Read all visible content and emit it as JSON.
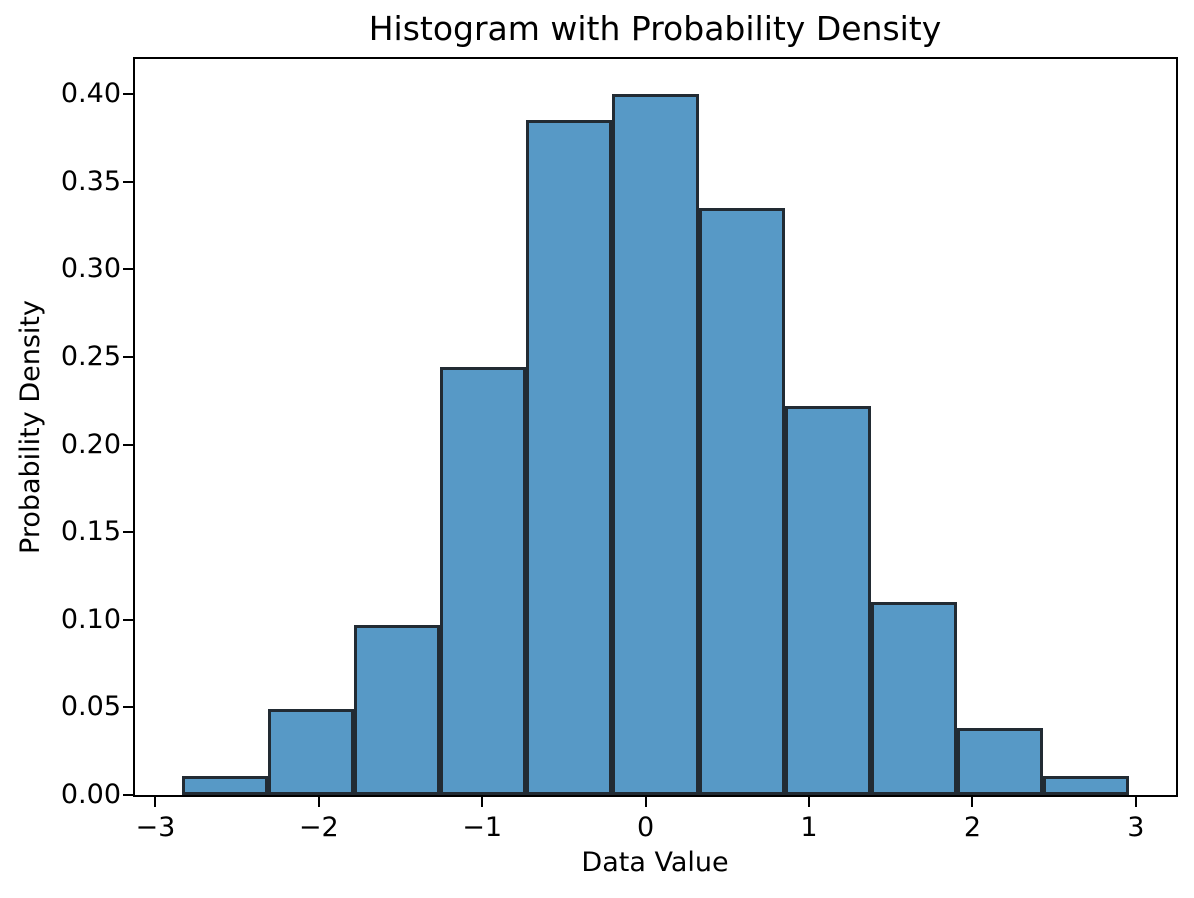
{
  "chart_data": {
    "type": "bar",
    "subtype": "histogram",
    "title": "Histogram with Probability Density",
    "xlabel": "Data Value",
    "ylabel": "Probability Density",
    "bin_edges": [
      -2.835,
      -2.309,
      -1.782,
      -1.256,
      -0.729,
      -0.203,
      0.324,
      0.851,
      1.377,
      1.904,
      2.43,
      2.957
    ],
    "densities": [
      0.011,
      0.049,
      0.097,
      0.244,
      0.385,
      0.4,
      0.335,
      0.222,
      0.11,
      0.038,
      0.011
    ],
    "xticks": [
      -3,
      -2,
      -1,
      0,
      1,
      2,
      3
    ],
    "xtick_labels": [
      "−3",
      "−2",
      "−1",
      "0",
      "1",
      "2",
      "3"
    ],
    "yticks": [
      0.0,
      0.05,
      0.1,
      0.15,
      0.2,
      0.25,
      0.3,
      0.35,
      0.4
    ],
    "ytick_labels": [
      "0.00",
      "0.05",
      "0.10",
      "0.15",
      "0.20",
      "0.25",
      "0.30",
      "0.35",
      "0.40"
    ],
    "xlim": [
      -3.125,
      3.246
    ],
    "ylim": [
      0,
      0.42
    ],
    "bar_color": "#5799c6",
    "bar_edge_color": "#222b33",
    "spine_color": "#000000",
    "grid": false,
    "legend": null
  }
}
